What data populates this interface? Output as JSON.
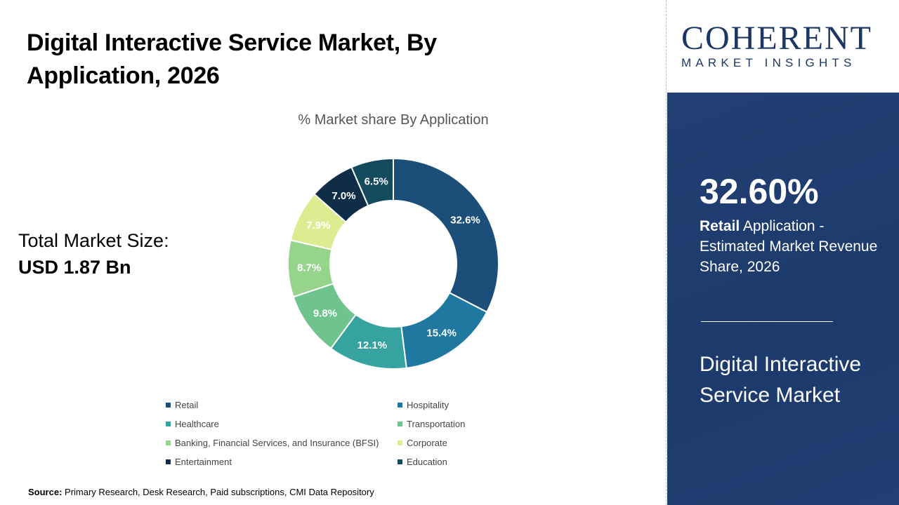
{
  "title": "Digital Interactive Service Market, By Application, 2026",
  "total_market": {
    "label": "Total Market Size:",
    "value": "USD 1.87 Bn"
  },
  "source": {
    "label": "Source:",
    "text": "Primary Research, Desk Research, Paid subscriptions, CMI Data Repository"
  },
  "logo": {
    "name": "COHERENT",
    "tagline": "MARKET INSIGHTS"
  },
  "highlight": {
    "value": "32.60%",
    "segment": "Retail",
    "description": "Application - Estimated Market Revenue Share, 2026",
    "market": "Digital Interactive Service Market"
  },
  "chart_data": {
    "type": "pie",
    "donut": true,
    "title": "% Market share By Application",
    "categories": [
      "Retail",
      "Hospitality",
      "Healthcare",
      "Transportation",
      "Banking, Financial Services, and Insurance (BFSI)",
      "Corporate",
      "Entertainment",
      "Education"
    ],
    "values": [
      32.6,
      15.4,
      12.1,
      9.8,
      8.7,
      7.9,
      7.0,
      6.5
    ],
    "labels": [
      "32.6%",
      "15.4%",
      "12.1%",
      "9.8%",
      "8.7%",
      "7.9%",
      "7.0%",
      "6.5%"
    ],
    "colors": [
      "#1b4f7a",
      "#1e78a0",
      "#36a3a0",
      "#6fc48e",
      "#95d48a",
      "#dcec91",
      "#0f2d47",
      "#134a5e"
    ],
    "label_colors": [
      "#fff",
      "#fff",
      "#fff",
      "#fff",
      "#fff",
      "#fff",
      "#fff",
      "#fff"
    ],
    "legend_position": "bottom"
  }
}
